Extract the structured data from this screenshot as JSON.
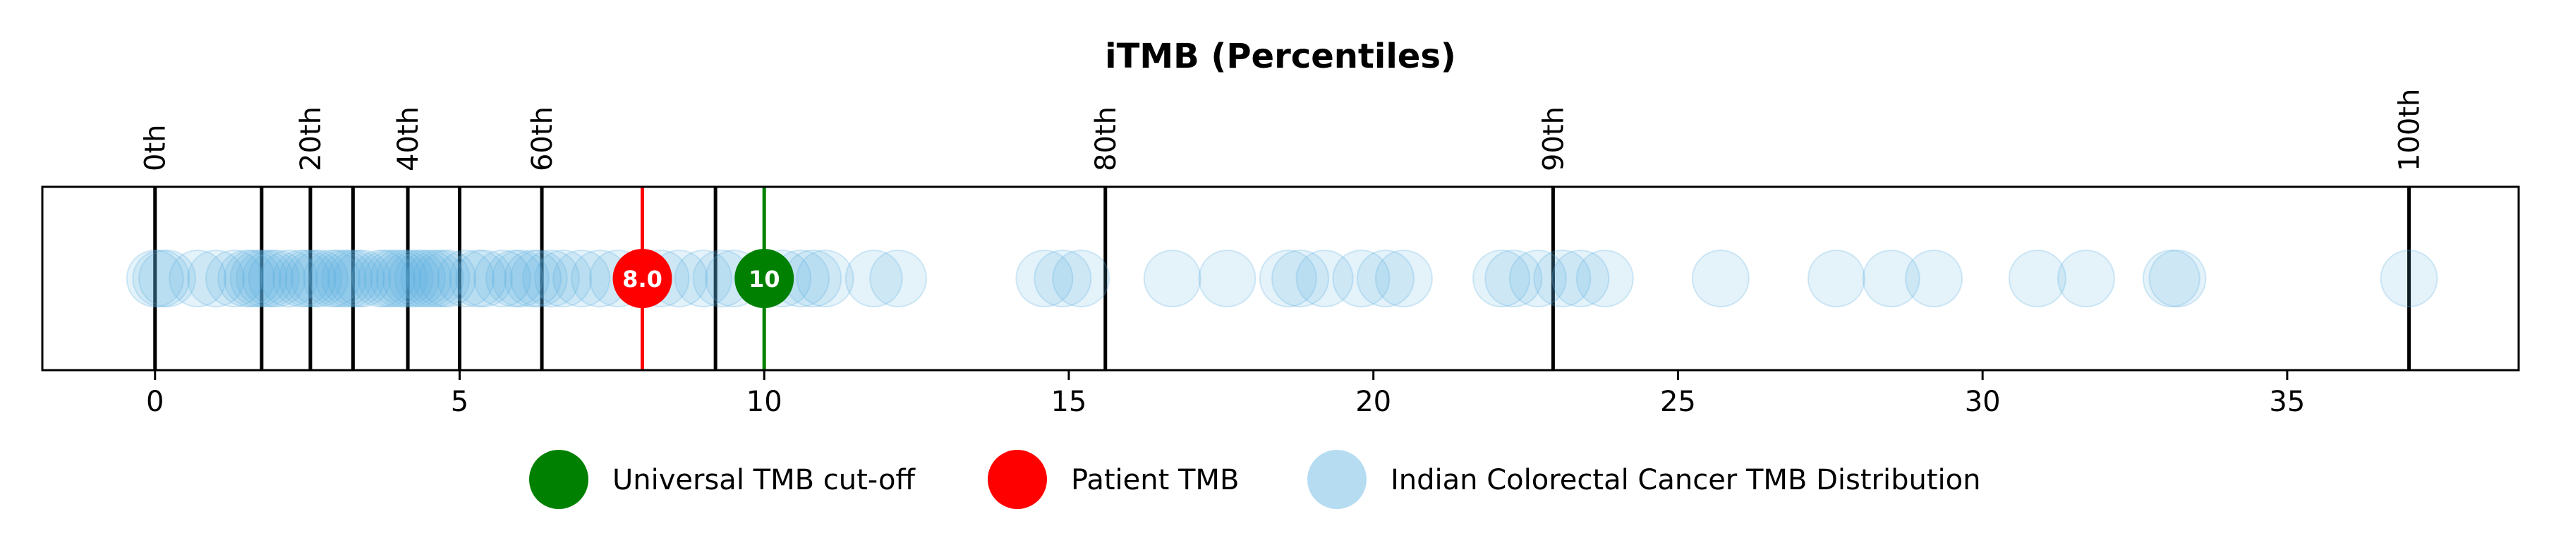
{
  "chart_data": {
    "type": "scatter",
    "title": "iTMB (Percentiles)",
    "xlim": [
      -1.85,
      38.8
    ],
    "xticks": [
      0,
      5,
      10,
      15,
      20,
      25,
      30,
      35
    ],
    "xtick_labels": [
      "0",
      "5",
      "10",
      "15",
      "20",
      "25",
      "30",
      "35"
    ],
    "percentile_lines": [
      {
        "label": "0th",
        "x": 0.0
      },
      {
        "label": "",
        "x": 1.75
      },
      {
        "label": "20th",
        "x": 2.55
      },
      {
        "label": "",
        "x": 3.25
      },
      {
        "label": "40th",
        "x": 4.15
      },
      {
        "label": "",
        "x": 5.0
      },
      {
        "label": "60th",
        "x": 6.35
      },
      {
        "label": "",
        "x": 9.2
      },
      {
        "label": "80th",
        "x": 15.6
      },
      {
        "label": "90th",
        "x": 22.95
      },
      {
        "label": "100th",
        "x": 37.0
      }
    ],
    "markers": [
      {
        "name": "Universal TMB cut-off",
        "x": 10,
        "label": "10",
        "color": "#008000"
      },
      {
        "name": "Patient TMB",
        "x": 8.0,
        "label": "8.0",
        "color": "#ff0000"
      }
    ],
    "distribution": {
      "name": "Indian Colorectal Cancer TMB Distribution",
      "color": "#5aafe0",
      "values": [
        0.0,
        0.1,
        0.2,
        0.7,
        1.0,
        1.3,
        1.5,
        1.6,
        1.7,
        1.8,
        1.9,
        2.0,
        2.2,
        2.4,
        2.5,
        2.6,
        2.7,
        2.9,
        3.0,
        3.1,
        3.2,
        3.3,
        3.4,
        3.7,
        3.8,
        3.9,
        4.0,
        4.1,
        4.2,
        4.3,
        4.4,
        4.5,
        4.6,
        4.7,
        4.8,
        5.1,
        5.3,
        5.4,
        5.7,
        5.9,
        6.0,
        6.2,
        6.3,
        6.5,
        6.7,
        7.0,
        7.3,
        7.6,
        8.3,
        8.6,
        9.0,
        9.3,
        9.5,
        10.3,
        10.6,
        10.8,
        11.0,
        11.8,
        12.2,
        14.6,
        14.9,
        15.2,
        16.7,
        17.6,
        18.6,
        18.8,
        19.2,
        19.8,
        20.2,
        20.5,
        22.1,
        22.3,
        22.7,
        23.1,
        23.4,
        23.8,
        25.7,
        27.6,
        28.5,
        29.2,
        30.9,
        31.7,
        33.1,
        33.2,
        37.0
      ]
    },
    "legend": {
      "placement": "bottom-center",
      "items": [
        {
          "label": "Universal TMB cut-off",
          "color": "#008000"
        },
        {
          "label": "Patient TMB",
          "color": "#ff0000"
        },
        {
          "label": "Indian Colorectal Cancer TMB Distribution",
          "color": "#b6dcf2"
        }
      ]
    },
    "grid": false,
    "xlabel": "",
    "ylabel": ""
  }
}
